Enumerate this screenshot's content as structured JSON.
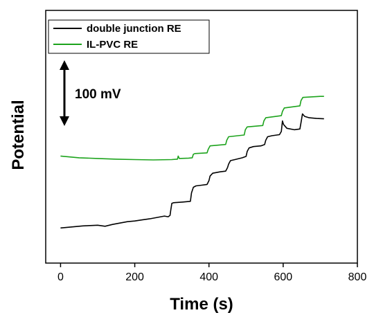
{
  "chart_data": {
    "type": "line",
    "xlabel": "Time (s)",
    "ylabel": "Potential",
    "xlim": [
      -40,
      800
    ],
    "ylim": [
      -300,
      420
    ],
    "x_ticks": [
      "0",
      "200",
      "400",
      "600",
      "800"
    ],
    "y_ticks_shown": false,
    "grid": false,
    "legend_position": "top-left",
    "scale_bar": {
      "label": "100 mV",
      "value": 100
    },
    "series": [
      {
        "name": "double junction RE",
        "color": "#000000",
        "points": [
          [
            0,
            -200
          ],
          [
            20,
            -198
          ],
          [
            40,
            -196
          ],
          [
            60,
            -194
          ],
          [
            80,
            -193
          ],
          [
            100,
            -192
          ],
          [
            120,
            -195
          ],
          [
            140,
            -190
          ],
          [
            160,
            -186
          ],
          [
            180,
            -182
          ],
          [
            200,
            -180
          ],
          [
            220,
            -177
          ],
          [
            240,
            -174
          ],
          [
            260,
            -170
          ],
          [
            280,
            -166
          ],
          [
            290,
            -168
          ],
          [
            295,
            -164
          ],
          [
            297,
            -150
          ],
          [
            300,
            -130
          ],
          [
            305,
            -128
          ],
          [
            330,
            -126
          ],
          [
            350,
            -124
          ],
          [
            353,
            -100
          ],
          [
            358,
            -84
          ],
          [
            365,
            -80
          ],
          [
            380,
            -78
          ],
          [
            395,
            -76
          ],
          [
            400,
            -65
          ],
          [
            403,
            -52
          ],
          [
            410,
            -44
          ],
          [
            430,
            -40
          ],
          [
            445,
            -38
          ],
          [
            450,
            -28
          ],
          [
            453,
            -18
          ],
          [
            458,
            -8
          ],
          [
            470,
            -5
          ],
          [
            490,
            0
          ],
          [
            500,
            4
          ],
          [
            503,
            18
          ],
          [
            508,
            28
          ],
          [
            520,
            32
          ],
          [
            540,
            34
          ],
          [
            550,
            38
          ],
          [
            553,
            50
          ],
          [
            558,
            60
          ],
          [
            570,
            63
          ],
          [
            590,
            66
          ],
          [
            595,
            75
          ],
          [
            598,
            105
          ],
          [
            601,
            95
          ],
          [
            610,
            84
          ],
          [
            630,
            80
          ],
          [
            645,
            82
          ],
          [
            648,
            100
          ],
          [
            652,
            125
          ],
          [
            658,
            118
          ],
          [
            670,
            114
          ],
          [
            690,
            112
          ],
          [
            710,
            111
          ]
        ]
      },
      {
        "name": "IL-PVC RE",
        "color": "#1ca31c",
        "points": [
          [
            0,
            5
          ],
          [
            50,
            0
          ],
          [
            100,
            -2
          ],
          [
            150,
            -4
          ],
          [
            200,
            -5
          ],
          [
            250,
            -6
          ],
          [
            300,
            -5
          ],
          [
            315,
            -4
          ],
          [
            317,
            5
          ],
          [
            320,
            -2
          ],
          [
            345,
            -1
          ],
          [
            355,
            0
          ],
          [
            358,
            10
          ],
          [
            362,
            12
          ],
          [
            395,
            14
          ],
          [
            398,
            24
          ],
          [
            403,
            34
          ],
          [
            445,
            38
          ],
          [
            448,
            50
          ],
          [
            453,
            60
          ],
          [
            495,
            65
          ],
          [
            498,
            80
          ],
          [
            503,
            88
          ],
          [
            545,
            92
          ],
          [
            548,
            105
          ],
          [
            553,
            114
          ],
          [
            595,
            120
          ],
          [
            598,
            132
          ],
          [
            603,
            142
          ],
          [
            645,
            148
          ],
          [
            648,
            163
          ],
          [
            653,
            172
          ],
          [
            700,
            175
          ],
          [
            710,
            175
          ]
        ]
      }
    ]
  }
}
